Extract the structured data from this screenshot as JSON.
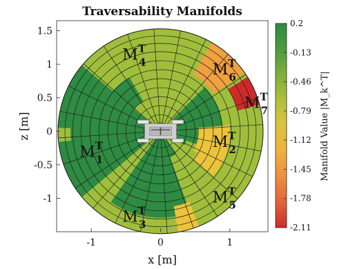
{
  "chart_data": {
    "type": "heatmap",
    "title": "Traversability Manifolds",
    "xlabel": "x [m]",
    "ylabel": "z [m]",
    "xlim": [
      -1.5,
      1.55
    ],
    "ylim": [
      -1.5,
      1.65
    ],
    "x_ticks": [
      "-1",
      "0",
      "1"
    ],
    "y_ticks": [
      "1.5",
      "1",
      "0.5",
      "0",
      "-0.5",
      "-1"
    ],
    "x_tick_values": [
      -1,
      0,
      1
    ],
    "y_tick_values": [
      1.5,
      1,
      0.5,
      0,
      -0.5,
      -1
    ],
    "grid": "polar",
    "grid_rings_m": [
      0.12,
      0.24,
      0.37,
      0.5,
      0.63,
      0.76,
      0.89,
      1.02,
      1.15,
      1.27,
      1.38,
      1.48
    ],
    "grid_sectors": 24,
    "outer_radius_m": 1.48,
    "colorbar": {
      "label": "Manifold Value |M_k^T|",
      "ticks": [
        "0.2",
        "-0.13",
        "-0.46",
        "-0.79",
        "-1.12",
        "-1.45",
        "-1.78",
        "-2.11"
      ],
      "tick_values": [
        0.2,
        -0.13,
        -0.46,
        -0.79,
        -1.12,
        -1.45,
        -1.78,
        -2.11
      ],
      "colors": [
        "#2e8b42",
        "#5fa63b",
        "#9fbf3c",
        "#c9c23a",
        "#edc33b",
        "#f0a140",
        "#e86b3a",
        "#cf2a2a"
      ]
    },
    "manifolds": [
      {
        "sub": "1",
        "x": -1.0,
        "z": -0.3,
        "value": 0.2
      },
      {
        "sub": "2",
        "x": 0.92,
        "z": -0.15,
        "value": -0.85
      },
      {
        "sub": "3",
        "x": -0.38,
        "z": -1.27,
        "value": 0.2
      },
      {
        "sub": "4",
        "x": -0.38,
        "z": 1.15,
        "value": -0.3
      },
      {
        "sub": "5",
        "x": 0.92,
        "z": -0.98,
        "value": -0.4
      },
      {
        "sub": "6",
        "x": 0.92,
        "z": 0.93,
        "value": -1.2
      },
      {
        "sub": "7",
        "x": 1.38,
        "z": 0.43,
        "value": -2.0
      }
    ],
    "label_main": "M",
    "label_sup": "T"
  }
}
